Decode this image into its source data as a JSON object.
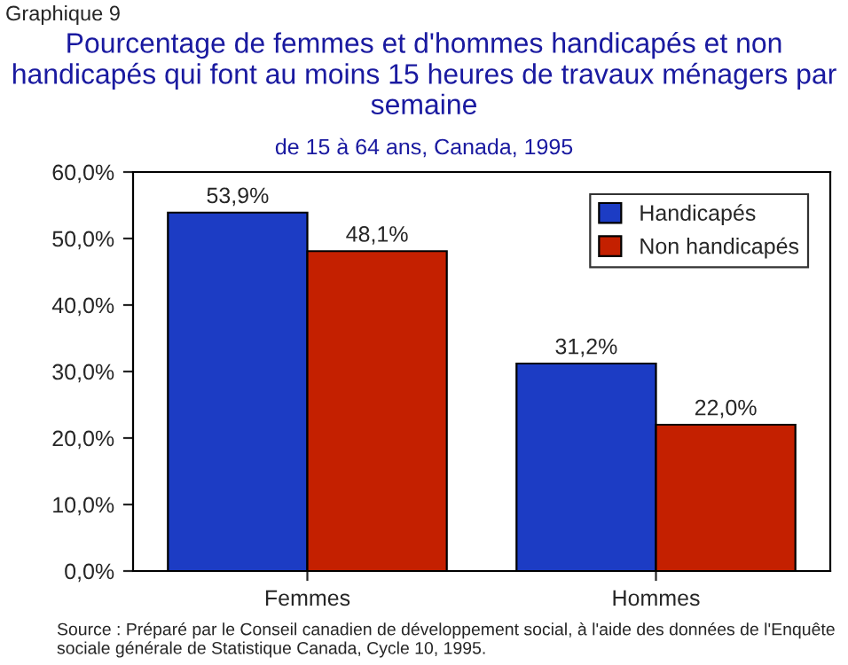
{
  "chart_data": {
    "type": "bar",
    "title": "Pourcentage de femmes et d'hommes handicapés et non handicapés qui font au moins 15 heures de travaux ménagers par semaine",
    "subtitle": "de 15 à 64 ans, Canada, 1995",
    "categories": [
      "Femmes",
      "Hommes"
    ],
    "series": [
      {
        "name": "Handicapés",
        "color": "#1c3cc4",
        "values": [
          53.9,
          31.2
        ],
        "value_labels": [
          "53,9%",
          "31,2%"
        ]
      },
      {
        "name": "Non handicapés",
        "color": "#c42000",
        "values": [
          48.1,
          22.0
        ],
        "value_labels": [
          "48,1%",
          "22,0%"
        ]
      }
    ],
    "ylim": [
      0,
      60
    ],
    "yticks": [
      {
        "value": 0,
        "label": "0,0%"
      },
      {
        "value": 10,
        "label": "10,0%"
      },
      {
        "value": 20,
        "label": "20,0%"
      },
      {
        "value": 30,
        "label": "30,0%"
      },
      {
        "value": 40,
        "label": "40,0%"
      },
      {
        "value": 50,
        "label": "50,0%"
      },
      {
        "value": 60,
        "label": "60,0%"
      }
    ],
    "legend": "top right",
    "grid": false,
    "annotations": [
      "Graphique 9",
      "Source : Préparé par le Conseil canadien de développement social, à l'aide des données de l'Enquête sociale générale de Statistique Canada, Cycle 10, 1995."
    ]
  }
}
